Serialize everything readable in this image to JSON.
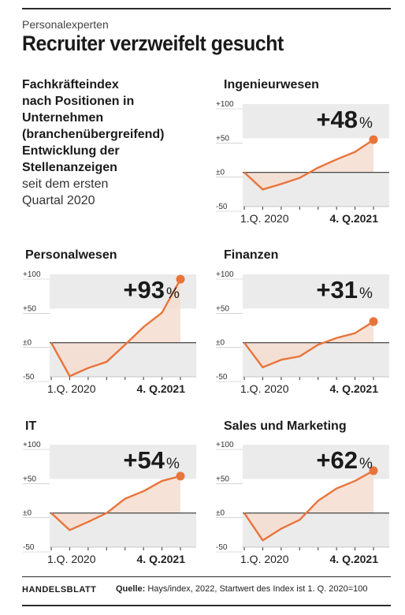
{
  "header": {
    "kicker": "Personalexperten",
    "title": "Recruiter verzweifelt gesucht"
  },
  "intro": {
    "bold_lines": [
      "Fachkräfteindex",
      "nach Positionen in",
      "Unternehmen",
      "(branchenübergreifend)",
      "Entwicklung der",
      "Stellenanzeigen"
    ],
    "regular_lines": [
      "seit dem ersten",
      "Quartal 2020"
    ]
  },
  "footer": {
    "brand": "HANDELSBLATT",
    "source_label": "Quelle:",
    "source_text": "Hays/index, 2022, Startwert des Index ist 1. Q. 2020=100"
  },
  "colors": {
    "line": "#e8743b",
    "fill": "#f6ddd0",
    "band": "#ebebeb",
    "axis": "#333333"
  },
  "chart_data": [
    {
      "type": "line",
      "title": "Ingenieurwesen",
      "x_start_label": "1.Q. 2020",
      "x_end_label": "4. Q.2021",
      "y_ticks": [
        "+100",
        "+50",
        "±0",
        "-50"
      ],
      "ylim": [
        -50,
        100
      ],
      "values": [
        0,
        -25,
        -17,
        -8,
        7,
        19,
        30,
        48
      ],
      "highlight_value": "+48",
      "highlight_unit": "%"
    },
    {
      "type": "line",
      "title": "Personalwesen",
      "x_start_label": "1.Q. 2020",
      "x_end_label": "4. Q.2021",
      "y_ticks": [
        "+100",
        "+50",
        "±0",
        "-50"
      ],
      "ylim": [
        -50,
        100
      ],
      "values": [
        0,
        -49,
        -37,
        -28,
        -3,
        23,
        44,
        93
      ],
      "highlight_value": "+93",
      "highlight_unit": "%"
    },
    {
      "type": "line",
      "title": "Finanzen",
      "x_start_label": "1.Q. 2020",
      "x_end_label": "4. Q.2021",
      "y_ticks": [
        "+100",
        "+50",
        "±0",
        "-50"
      ],
      "ylim": [
        -50,
        100
      ],
      "values": [
        0,
        -36,
        -25,
        -20,
        -3,
        7,
        14,
        31
      ],
      "highlight_value": "+31",
      "highlight_unit": "%"
    },
    {
      "type": "line",
      "title": "IT",
      "x_start_label": "1.Q. 2020",
      "x_end_label": "4. Q.2021",
      "y_ticks": [
        "+100",
        "+50",
        "±0",
        "-50"
      ],
      "ylim": [
        -50,
        100
      ],
      "values": [
        0,
        -25,
        -13,
        0,
        21,
        32,
        47,
        54
      ],
      "highlight_value": "+54",
      "highlight_unit": "%"
    },
    {
      "type": "line",
      "title": "Sales und Marketing",
      "x_start_label": "1.Q. 2020",
      "x_end_label": "4. Q.2021",
      "y_ticks": [
        "+100",
        "+50",
        "±0",
        "-50"
      ],
      "ylim": [
        -50,
        100
      ],
      "values": [
        0,
        -40,
        -23,
        -10,
        18,
        36,
        47,
        62
      ],
      "highlight_value": "+62",
      "highlight_unit": "%"
    }
  ]
}
